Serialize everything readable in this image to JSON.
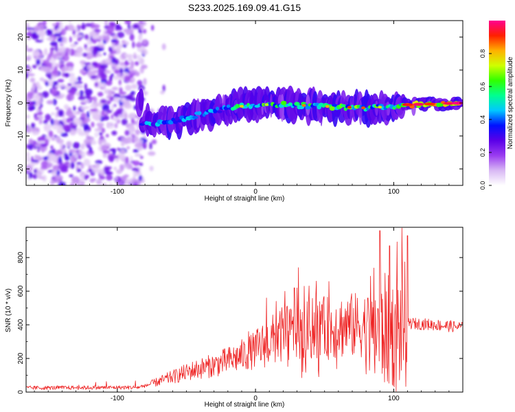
{
  "title": "S233.2025.169.09.41.G15",
  "colors": {
    "snr_line": "#ee2222",
    "colormap": [
      "#ffffff",
      "#d8b8f4",
      "#9a3cf0",
      "#5a00e8",
      "#0010ff",
      "#00c8ff",
      "#00ff90",
      "#30ff00",
      "#d0ff00",
      "#ffb000",
      "#ff2000",
      "#ff0090"
    ]
  },
  "chart_data": [
    {
      "type": "heatmap",
      "xlabel": "Height of straight line (km)",
      "ylabel": "Frequency (Hz)",
      "xlim": [
        -166,
        150
      ],
      "ylim": [
        -25,
        25
      ],
      "xticks": [
        "-100",
        "0",
        "100"
      ],
      "xtick_values": [
        -100,
        0,
        100
      ],
      "yticks": [
        "20",
        "10",
        "0",
        "-10",
        "-20"
      ],
      "ytick_values": [
        20,
        10,
        0,
        -10,
        -20
      ],
      "ridge": [
        {
          "x": -82,
          "f": -6.5
        },
        {
          "x": -60,
          "f": -5.5
        },
        {
          "x": -40,
          "f": -3.5
        },
        {
          "x": -20,
          "f": -1.5
        },
        {
          "x": 0,
          "f": -0.5
        },
        {
          "x": 20,
          "f": -0.5
        },
        {
          "x": 50,
          "f": -1.0
        },
        {
          "x": 80,
          "f": -1.5
        },
        {
          "x": 100,
          "f": -1.0
        },
        {
          "x": 110,
          "f": -0.5
        },
        {
          "x": 150,
          "f": 0.0
        }
      ],
      "colorbar": {
        "label": "Normalized spectral amplitude",
        "ticks": [
          "0.0",
          "0.2",
          "0.4",
          "0.6",
          "0.8"
        ],
        "tick_values": [
          0.0,
          0.2,
          0.4,
          0.6,
          0.8
        ],
        "range": [
          0,
          1
        ]
      }
    },
    {
      "type": "line",
      "xlabel": "Height of straight line (km)",
      "ylabel": "SNR (10 * v/v)",
      "xlim": [
        -166,
        150
      ],
      "ylim": [
        0,
        980
      ],
      "xticks": [
        "-100",
        "0",
        "100"
      ],
      "xtick_values": [
        -100,
        0,
        100
      ],
      "yticks": [
        "0",
        "200",
        "400",
        "600",
        "800"
      ],
      "ytick_values": [
        0,
        200,
        400,
        600,
        800
      ],
      "envelope": [
        {
          "x": -166,
          "y": 25
        },
        {
          "x": -85,
          "y": 28
        },
        {
          "x": -75,
          "y": 50
        },
        {
          "x": -60,
          "y": 90
        },
        {
          "x": -45,
          "y": 130
        },
        {
          "x": -30,
          "y": 160
        },
        {
          "x": -15,
          "y": 200
        },
        {
          "x": 0,
          "y": 250
        },
        {
          "x": 10,
          "y": 300
        },
        {
          "x": 20,
          "y": 340
        },
        {
          "x": 40,
          "y": 370
        },
        {
          "x": 60,
          "y": 390
        },
        {
          "x": 80,
          "y": 400
        },
        {
          "x": 100,
          "y": 350
        },
        {
          "x": 110,
          "y": 410
        },
        {
          "x": 130,
          "y": 400
        },
        {
          "x": 150,
          "y": 385
        }
      ],
      "peaks": [
        {
          "x": -5,
          "y": 360
        },
        {
          "x": 8,
          "y": 560
        },
        {
          "x": 15,
          "y": 540
        },
        {
          "x": 28,
          "y": 620
        },
        {
          "x": 31,
          "y": 740
        },
        {
          "x": 44,
          "y": 660
        },
        {
          "x": 48,
          "y": 520
        },
        {
          "x": 90,
          "y": 960
        },
        {
          "x": 97,
          "y": 870
        },
        {
          "x": 106,
          "y": 975
        },
        {
          "x": 110,
          "y": 930
        }
      ]
    }
  ]
}
